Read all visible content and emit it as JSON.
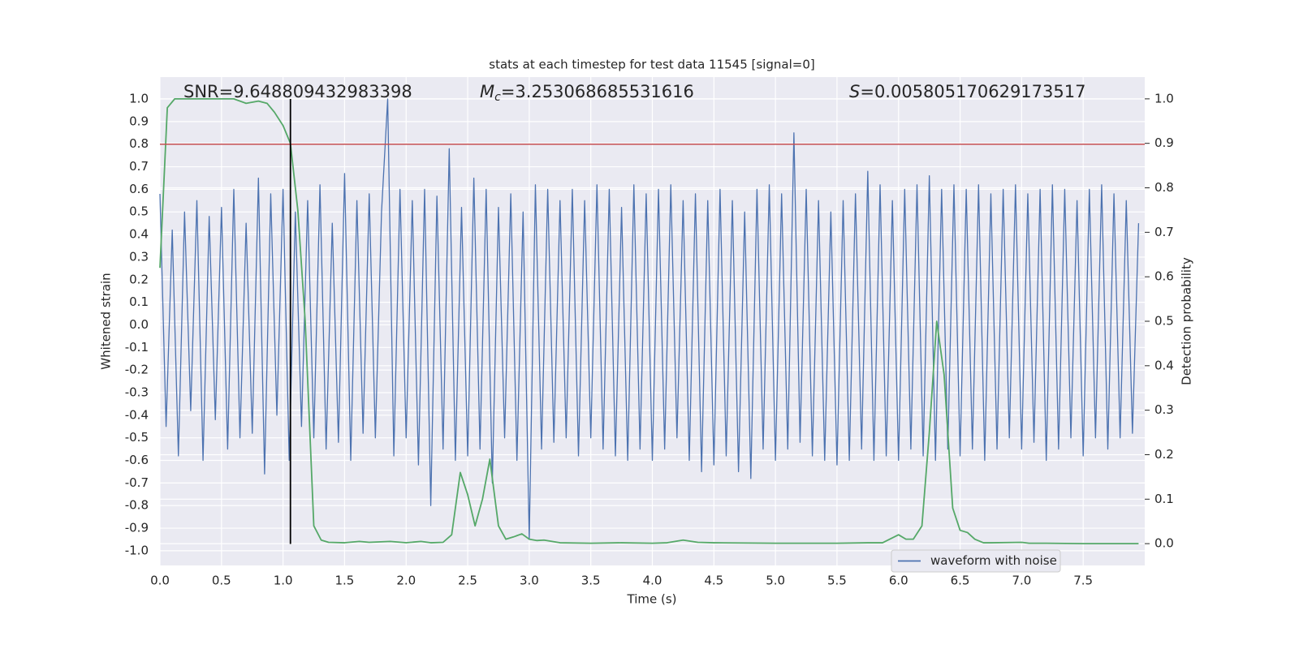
{
  "chart_data": {
    "type": "line",
    "title": "stats at each timestep for test data 11545 [signal=0]",
    "xlabel": "Time (s)",
    "ylabel": "Whitened strain",
    "y2label": "Detection probability",
    "annotations": {
      "snr": "SNR=9.648809432983398",
      "mc": [
        "M",
        "c",
        "=3.253068685531616"
      ],
      "s": [
        "S",
        "=0.005805170629173517"
      ]
    },
    "xlim": [
      0,
      8.0
    ],
    "ylim": [
      -1.065,
      1.097
    ],
    "y2lim": [
      -0.049,
      1.049
    ],
    "xticks": [
      {
        "value": 0,
        "label": "0.0"
      },
      0.5,
      {
        "value": 1,
        "label": "1.0"
      },
      1.5,
      {
        "value": 2,
        "label": "2.0"
      },
      2.5,
      {
        "value": 3,
        "label": "3.0"
      },
      3.5,
      {
        "value": 4,
        "label": "4.0"
      },
      4.5,
      {
        "value": 5,
        "label": "5.0"
      },
      5.5,
      {
        "value": 6,
        "label": "6.0"
      },
      6.5,
      {
        "value": 7,
        "label": "7.0"
      },
      7.5
    ],
    "yticks": [
      {
        "value": -1,
        "label": "-1.0"
      },
      -0.9,
      -0.8,
      -0.7,
      -0.6,
      -0.5,
      -0.4,
      -0.3,
      -0.2,
      -0.1,
      {
        "value": 0,
        "label": "0.0"
      },
      0.1,
      0.2,
      0.3,
      0.4,
      0.5,
      0.6,
      0.7,
      0.8,
      0.9,
      {
        "value": 1,
        "label": "1.0"
      }
    ],
    "y2ticks": [
      {
        "value": 0,
        "label": "0.0"
      },
      0.1,
      0.2,
      0.3,
      0.4,
      0.5,
      0.6,
      0.7,
      0.8,
      0.9,
      {
        "value": 1,
        "label": "1.0"
      }
    ],
    "grid": true,
    "legend_loc": "lower right",
    "threshold": {
      "y": 0.8,
      "color": "#c44e52"
    },
    "marker": {
      "x": 1.06,
      "ymin": -0.97,
      "ymax": 1.0,
      "color": "#000000"
    },
    "series": [
      {
        "name": "waveform with noise",
        "color": "#4c72b0",
        "x": [
          0,
          0.05,
          0.1,
          0.15,
          0.2,
          0.25,
          0.3,
          0.35,
          0.4,
          0.45,
          0.5,
          0.55,
          0.6,
          0.65,
          0.7,
          0.75,
          0.8,
          0.85,
          0.9,
          0.95,
          1,
          1.05,
          1.1,
          1.15,
          1.2,
          1.25,
          1.3,
          1.35,
          1.4,
          1.45,
          1.5,
          1.55,
          1.6,
          1.65,
          1.7,
          1.75,
          1.8,
          1.85,
          1.9,
          1.95,
          2,
          2.05,
          2.1,
          2.15,
          2.2,
          2.25,
          2.3,
          2.35,
          2.4,
          2.45,
          2.5,
          2.55,
          2.6,
          2.65,
          2.7,
          2.75,
          2.8,
          2.85,
          2.9,
          2.95,
          3,
          3.05,
          3.1,
          3.15,
          3.2,
          3.25,
          3.3,
          3.35,
          3.4,
          3.45,
          3.5,
          3.55,
          3.6,
          3.65,
          3.7,
          3.75,
          3.8,
          3.85,
          3.9,
          3.95,
          4,
          4.05,
          4.1,
          4.15,
          4.2,
          4.25,
          4.3,
          4.35,
          4.4,
          4.45,
          4.5,
          4.55,
          4.6,
          4.65,
          4.7,
          4.75,
          4.8,
          4.85,
          4.9,
          4.95,
          5,
          5.05,
          5.1,
          5.15,
          5.2,
          5.25,
          5.3,
          5.35,
          5.4,
          5.45,
          5.5,
          5.55,
          5.6,
          5.65,
          5.7,
          5.75,
          5.8,
          5.85,
          5.9,
          5.95,
          6,
          6.05,
          6.1,
          6.15,
          6.2,
          6.25,
          6.3,
          6.35,
          6.4,
          6.45,
          6.5,
          6.55,
          6.6,
          6.65,
          6.7,
          6.75,
          6.8,
          6.85,
          6.9,
          6.95,
          7,
          7.05,
          7.1,
          7.15,
          7.2,
          7.25,
          7.3,
          7.35,
          7.4,
          7.45,
          7.5,
          7.55,
          7.6,
          7.65,
          7.7,
          7.75,
          7.8,
          7.85,
          7.9,
          7.95
        ],
        "values": [
          0.58,
          -0.45,
          0.42,
          -0.58,
          0.5,
          -0.38,
          0.55,
          -0.6,
          0.48,
          -0.42,
          0.52,
          -0.55,
          0.6,
          -0.5,
          0.45,
          -0.48,
          0.65,
          -0.66,
          0.58,
          -0.4,
          0.6,
          -0.6,
          0.5,
          -0.45,
          0.55,
          -0.5,
          0.62,
          -0.55,
          0.45,
          -0.52,
          0.67,
          -0.6,
          0.55,
          -0.48,
          0.58,
          -0.5,
          0.5,
          1.0,
          -0.58,
          0.6,
          -0.5,
          0.55,
          -0.62,
          0.6,
          -0.8,
          0.57,
          -0.55,
          0.78,
          -0.6,
          0.52,
          -0.58,
          0.65,
          -0.55,
          0.6,
          -0.7,
          0.52,
          -0.5,
          0.58,
          -0.6,
          0.5,
          -0.95,
          0.62,
          -0.55,
          0.6,
          -0.52,
          0.55,
          -0.5,
          0.6,
          -0.58,
          0.55,
          -0.5,
          0.62,
          -0.55,
          0.6,
          -0.58,
          0.52,
          -0.6,
          0.62,
          -0.55,
          0.58,
          -0.6,
          0.6,
          -0.55,
          0.62,
          -0.5,
          0.55,
          -0.6,
          0.58,
          -0.65,
          0.55,
          -0.62,
          0.6,
          -0.58,
          0.55,
          -0.65,
          0.5,
          -0.68,
          0.6,
          -0.55,
          0.62,
          -0.6,
          0.58,
          -0.55,
          0.85,
          -0.52,
          0.6,
          -0.58,
          0.55,
          -0.6,
          0.5,
          -0.62,
          0.55,
          -0.6,
          0.58,
          -0.55,
          0.68,
          -0.6,
          0.62,
          -0.58,
          0.55,
          -0.6,
          0.6,
          -0.55,
          0.62,
          -0.58,
          0.66,
          -0.6,
          0.6,
          -0.55,
          0.62,
          -0.58,
          0.6,
          -0.55,
          0.62,
          -0.6,
          0.58,
          -0.55,
          0.6,
          -0.5,
          0.62,
          -0.55,
          0.58,
          -0.52,
          0.6,
          -0.6,
          0.62,
          -0.55,
          0.6,
          -0.5,
          0.55,
          -0.58,
          0.6,
          -0.5,
          0.62,
          -0.55,
          0.58,
          -0.5,
          0.55,
          -0.48,
          0.45
        ]
      },
      {
        "color": "#55a868",
        "axis": "y2",
        "x": [
          0,
          0.06,
          0.12,
          0.2,
          0.3,
          0.4,
          0.5,
          0.6,
          0.7,
          0.8,
          0.87,
          0.93,
          1.0,
          1.06,
          1.12,
          1.18,
          1.25,
          1.31,
          1.37,
          1.5,
          1.62,
          1.7,
          1.87,
          2.0,
          2.12,
          2.2,
          2.3,
          2.37,
          2.44,
          2.5,
          2.56,
          2.62,
          2.68,
          2.75,
          2.81,
          2.87,
          2.94,
          3.0,
          3.06,
          3.12,
          3.25,
          3.5,
          3.75,
          4.0,
          4.12,
          4.25,
          4.37,
          4.5,
          5.0,
          5.5,
          5.75,
          5.87,
          6.0,
          6.06,
          6.12,
          6.19,
          6.25,
          6.31,
          6.37,
          6.44,
          6.5,
          6.56,
          6.62,
          6.69,
          6.75,
          7.0,
          7.06,
          7.2,
          7.5,
          7.95
        ],
        "values": [
          0.62,
          0.98,
          1.0,
          1.0,
          1.0,
          1.0,
          1.0,
          1.0,
          0.99,
          0.995,
          0.99,
          0.97,
          0.94,
          0.9,
          0.75,
          0.5,
          0.04,
          0.008,
          0.003,
          0.002,
          0.005,
          0.003,
          0.005,
          0.002,
          0.005,
          0.002,
          0.003,
          0.02,
          0.16,
          0.11,
          0.04,
          0.1,
          0.19,
          0.04,
          0.01,
          0.015,
          0.022,
          0.01,
          0.007,
          0.008,
          0.002,
          0.001,
          0.002,
          0.001,
          0.002,
          0.008,
          0.003,
          0.002,
          0.001,
          0.001,
          0.002,
          0.002,
          0.02,
          0.01,
          0.01,
          0.04,
          0.25,
          0.5,
          0.38,
          0.08,
          0.03,
          0.025,
          0.01,
          0.002,
          0.002,
          0.003,
          0.001,
          0.001,
          0,
          0
        ]
      }
    ]
  }
}
